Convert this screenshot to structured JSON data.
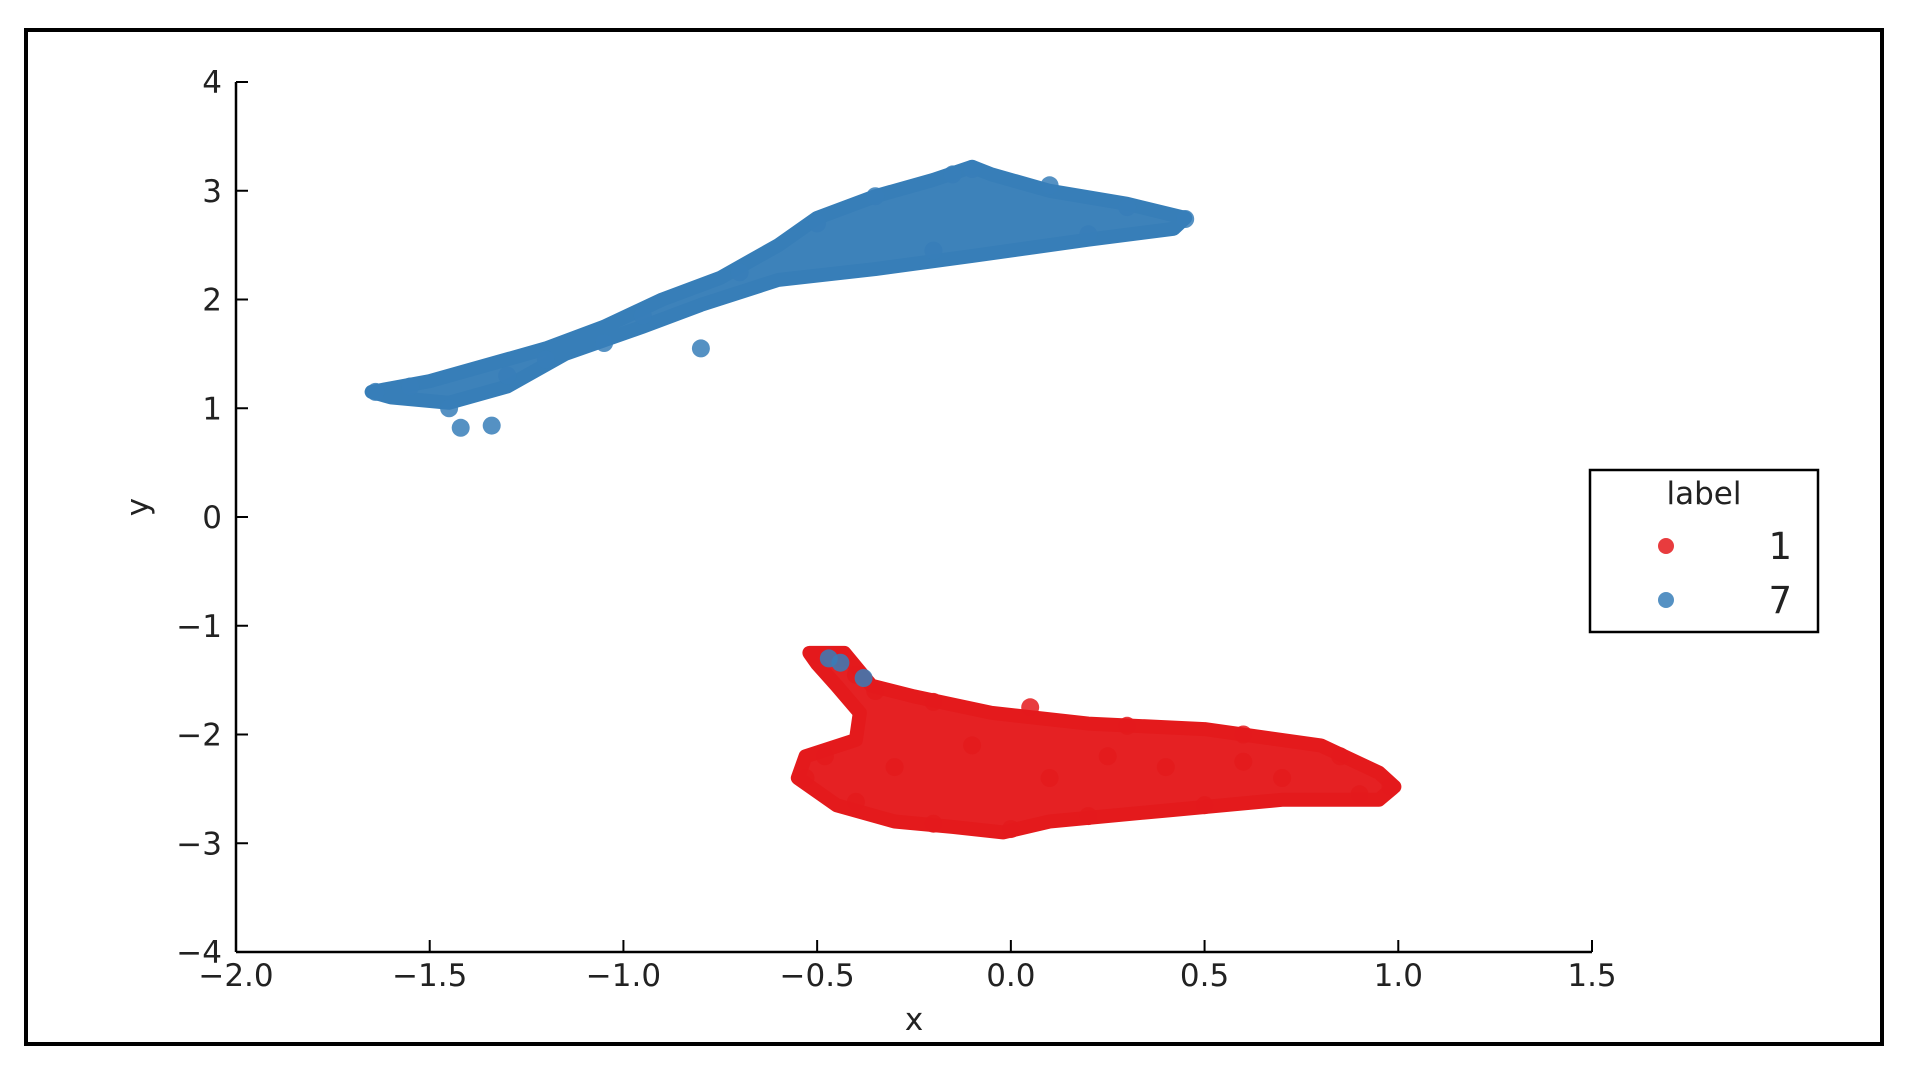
{
  "chart_data": {
    "type": "scatter",
    "title": "",
    "xlabel": "x",
    "ylabel": "y",
    "xlim": [
      -2.0,
      1.5
    ],
    "ylim": [
      -4,
      4
    ],
    "xticks": [
      -2.0,
      -1.5,
      -1.0,
      -0.5,
      0.0,
      0.5,
      1.0,
      1.5
    ],
    "xtick_labels": [
      "−2.0",
      "−1.5",
      "−1.0",
      "−0.5",
      "0.0",
      "0.5",
      "1.0",
      "1.5"
    ],
    "yticks": [
      -4,
      -3,
      -2,
      -1,
      0,
      1,
      2,
      3,
      4
    ],
    "ytick_labels": [
      "−4",
      "−3",
      "−2",
      "−1",
      "0",
      "1",
      "2",
      "3",
      "4"
    ],
    "grid": false,
    "legend": {
      "title": "label",
      "placement": "right"
    },
    "series": [
      {
        "name": "1",
        "color": "#e41a1c",
        "cluster_outline": [
          [
            -0.52,
            -1.25
          ],
          [
            -0.43,
            -1.25
          ],
          [
            -0.36,
            -1.55
          ],
          [
            -0.25,
            -1.65
          ],
          [
            -0.05,
            -1.8
          ],
          [
            0.2,
            -1.9
          ],
          [
            0.5,
            -1.95
          ],
          [
            0.8,
            -2.1
          ],
          [
            0.95,
            -2.35
          ],
          [
            0.99,
            -2.48
          ],
          [
            0.95,
            -2.6
          ],
          [
            0.7,
            -2.6
          ],
          [
            0.4,
            -2.7
          ],
          [
            0.1,
            -2.8
          ],
          [
            -0.02,
            -2.9
          ],
          [
            -0.15,
            -2.85
          ],
          [
            -0.3,
            -2.8
          ],
          [
            -0.45,
            -2.65
          ],
          [
            -0.55,
            -2.4
          ],
          [
            -0.53,
            -2.2
          ],
          [
            -0.4,
            -2.05
          ],
          [
            -0.39,
            -1.8
          ],
          [
            -0.45,
            -1.55
          ],
          [
            -0.5,
            -1.35
          ]
        ],
        "points": [
          [
            -0.5,
            -1.27
          ],
          [
            -0.44,
            -1.3
          ],
          [
            -0.4,
            -1.45
          ],
          [
            -0.35,
            -1.6
          ],
          [
            -0.2,
            -1.7
          ],
          [
            0.05,
            -1.75
          ],
          [
            0.3,
            -1.92
          ],
          [
            0.6,
            -2.0
          ],
          [
            0.85,
            -2.2
          ],
          [
            0.98,
            -2.48
          ],
          [
            0.9,
            -2.55
          ],
          [
            0.5,
            -2.65
          ],
          [
            0.2,
            -2.75
          ],
          [
            0.0,
            -2.87
          ],
          [
            -0.2,
            -2.82
          ],
          [
            -0.4,
            -2.62
          ],
          [
            -0.53,
            -2.4
          ],
          [
            -0.48,
            -2.2
          ],
          [
            -0.3,
            -2.3
          ],
          [
            0.1,
            -2.4
          ],
          [
            0.4,
            -2.3
          ],
          [
            0.7,
            -2.4
          ],
          [
            -0.1,
            -2.1
          ],
          [
            0.25,
            -2.2
          ],
          [
            0.6,
            -2.25
          ]
        ]
      },
      {
        "name": "7",
        "color": "#377eb8",
        "cluster_outline": [
          [
            -1.65,
            1.15
          ],
          [
            -1.5,
            1.25
          ],
          [
            -1.35,
            1.4
          ],
          [
            -1.2,
            1.55
          ],
          [
            -1.05,
            1.75
          ],
          [
            -0.9,
            2.0
          ],
          [
            -0.75,
            2.2
          ],
          [
            -0.6,
            2.5
          ],
          [
            -0.5,
            2.75
          ],
          [
            -0.35,
            2.95
          ],
          [
            -0.2,
            3.1
          ],
          [
            -0.1,
            3.22
          ],
          [
            -0.05,
            3.15
          ],
          [
            0.1,
            3.0
          ],
          [
            0.3,
            2.88
          ],
          [
            0.45,
            2.75
          ],
          [
            0.42,
            2.65
          ],
          [
            0.2,
            2.55
          ],
          [
            -0.1,
            2.4
          ],
          [
            -0.35,
            2.28
          ],
          [
            -0.6,
            2.18
          ],
          [
            -0.8,
            1.95
          ],
          [
            -0.95,
            1.75
          ],
          [
            -1.15,
            1.5
          ],
          [
            -1.3,
            1.2
          ],
          [
            -1.45,
            1.05
          ],
          [
            -1.6,
            1.1
          ]
        ],
        "points": [
          [
            -1.64,
            1.15
          ],
          [
            -1.55,
            1.2
          ],
          [
            -1.45,
            1.0
          ],
          [
            -1.42,
            0.82
          ],
          [
            -1.34,
            0.84
          ],
          [
            -1.3,
            1.3
          ],
          [
            -1.2,
            1.45
          ],
          [
            -1.05,
            1.6
          ],
          [
            -0.95,
            1.85
          ],
          [
            -0.8,
            1.55
          ],
          [
            -0.7,
            2.25
          ],
          [
            -0.5,
            2.7
          ],
          [
            -0.35,
            2.95
          ],
          [
            -0.15,
            3.15
          ],
          [
            -0.1,
            3.2
          ],
          [
            0.1,
            3.05
          ],
          [
            0.3,
            2.85
          ],
          [
            0.45,
            2.74
          ],
          [
            0.2,
            2.6
          ],
          [
            -0.2,
            2.45
          ],
          [
            -0.47,
            -1.3
          ],
          [
            -0.44,
            -1.34
          ],
          [
            -0.38,
            -1.48
          ]
        ]
      }
    ]
  }
}
